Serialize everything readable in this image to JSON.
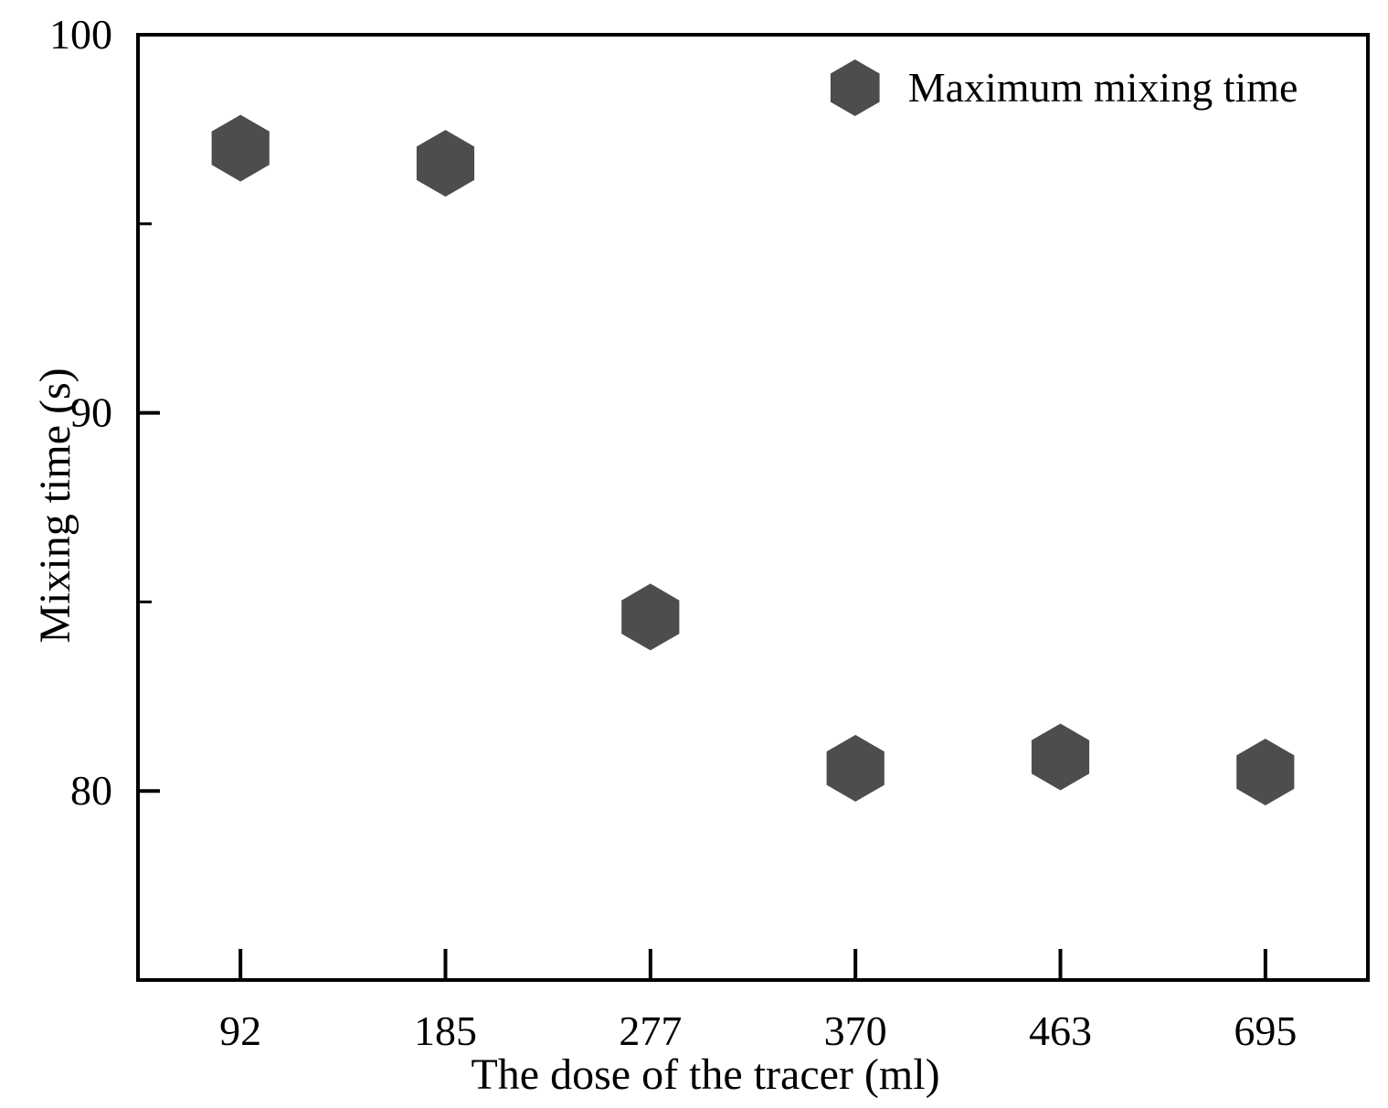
{
  "chart_data": {
    "type": "scatter",
    "title": "",
    "xlabel": "The dose of the tracer (ml)",
    "ylabel": "Mixing time (s)",
    "categories": [
      "92",
      "185",
      "277",
      "370",
      "463",
      "695"
    ],
    "series": [
      {
        "name": "Maximum mixing time",
        "marker": "hexagon",
        "color": "#4d4d4d",
        "values": [
          97.0,
          96.6,
          84.6,
          80.6,
          80.9,
          80.5
        ]
      }
    ],
    "ylim": [
      75,
      100
    ],
    "y_major_ticks": [
      80,
      90,
      100
    ],
    "y_minor_ticks": [
      85,
      95
    ],
    "x_axis_numbers_shown": [
      "92",
      "185",
      "277",
      "370",
      "463",
      "695"
    ],
    "grid": false,
    "legend": {
      "position": "upper-right",
      "entries": [
        "Maximum mixing time"
      ]
    }
  },
  "style": {
    "background": "#ffffff",
    "axis_color": "#000000",
    "text_color": "#000000",
    "marker_color": "#4d4d4d"
  }
}
